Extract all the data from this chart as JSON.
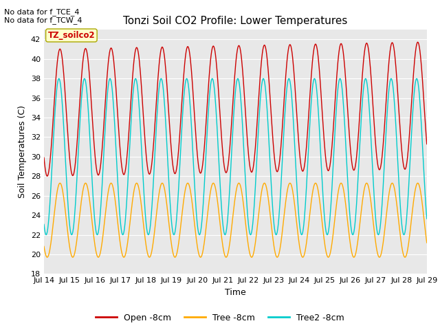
{
  "title": "Tonzi Soil CO2 Profile: Lower Temperatures",
  "ylabel": "Soil Temperatures (C)",
  "xlabel": "Time",
  "top_left_text": "No data for f_TCE_4\nNo data for f_TCW_4",
  "watermark_text": "TZ_soilco2",
  "ylim": [
    18,
    43
  ],
  "yticks": [
    18,
    20,
    22,
    24,
    26,
    28,
    30,
    32,
    34,
    36,
    38,
    40,
    42
  ],
  "xtick_labels": [
    "Jul 14",
    "Jul 15",
    "Jul 16",
    "Jul 17",
    "Jul 18",
    "Jul 19",
    "Jul 20",
    "Jul 21",
    "Jul 22",
    "Jul 23",
    "Jul 24",
    "Jul 25",
    "Jul 26",
    "Jul 27",
    "Jul 28",
    "Jul 29"
  ],
  "bg_color": "#ffffff",
  "plot_bg_color": "#e8e8e8",
  "legend_entries": [
    "Open -8cm",
    "Tree -8cm",
    "Tree2 -8cm"
  ],
  "legend_colors": [
    "#cc0000",
    "#ffaa00",
    "#00cccc"
  ],
  "line_width": 1.0,
  "open_color": "#cc0000",
  "tree_color": "#ffaa00",
  "tree2_color": "#00cccc",
  "title_fontsize": 11,
  "axis_fontsize": 9,
  "tick_fontsize": 8
}
